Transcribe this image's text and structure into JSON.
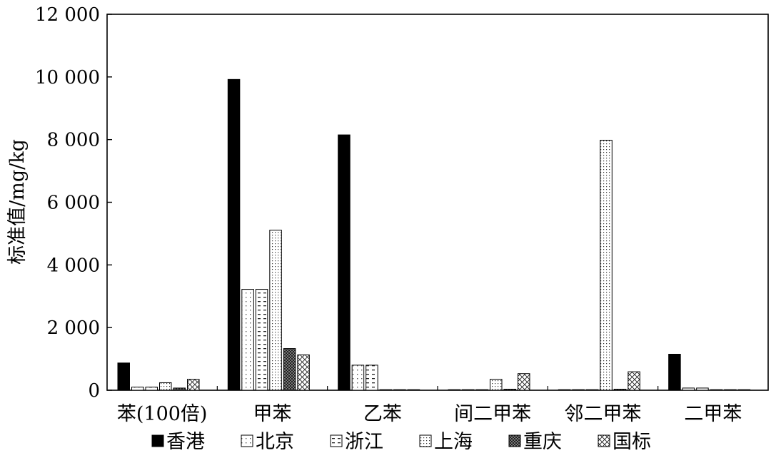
{
  "chart_data": {
    "type": "bar",
    "title": "",
    "xlabel": "",
    "ylabel": "标准值/mg/kg",
    "ylim": [
      0,
      12000
    ],
    "yticks": [
      0,
      2000,
      4000,
      6000,
      8000,
      10000,
      12000
    ],
    "ytick_labels": [
      "0",
      "2 000",
      "4 000",
      "6 000",
      "8 000",
      "10 000",
      "12 000"
    ],
    "grid": false,
    "legend_position": "bottom",
    "categories": [
      "苯(100倍)",
      "甲苯",
      "乙苯",
      "间二甲苯",
      "邻二甲苯",
      "二甲苯"
    ],
    "series": [
      {
        "name": "香港",
        "pattern": "solid-black",
        "values": [
          870,
          9920,
          8150,
          0,
          0,
          1150
        ]
      },
      {
        "name": "北京",
        "pattern": "dots-sparse",
        "values": [
          100,
          3220,
          800,
          0,
          0,
          70
        ]
      },
      {
        "name": "浙江",
        "pattern": "dashes",
        "values": [
          100,
          3220,
          800,
          0,
          0,
          70
        ]
      },
      {
        "name": "上海",
        "pattern": "dots-dense",
        "values": [
          240,
          5110,
          0,
          350,
          7980,
          0
        ]
      },
      {
        "name": "重庆",
        "pattern": "checker-dark",
        "values": [
          70,
          1330,
          0,
          30,
          30,
          0
        ]
      },
      {
        "name": "国标",
        "pattern": "crosshatch",
        "values": [
          350,
          1130,
          0,
          530,
          590,
          0
        ]
      }
    ]
  }
}
